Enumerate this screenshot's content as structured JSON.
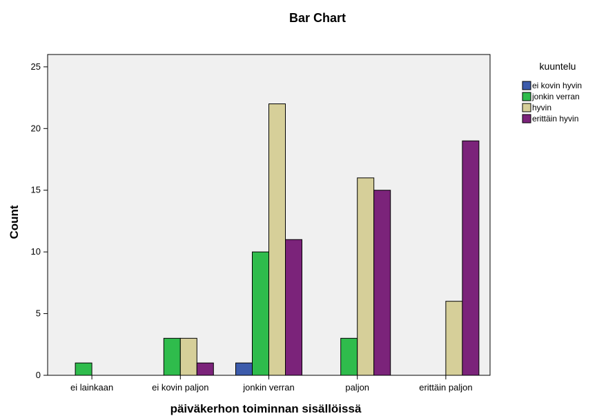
{
  "chart_data": {
    "type": "bar",
    "title": "Bar Chart",
    "xlabel": "päiväkerhon toiminnan sisällöissä",
    "ylabel": "Count",
    "ylim": [
      0,
      26
    ],
    "yticks": [
      0,
      5,
      10,
      15,
      20,
      25
    ],
    "grid": false,
    "legend_position": "top-right",
    "legend_title": "kuuntelu",
    "categories": [
      "ei lainkaan",
      "ei kovin paljon",
      "jonkin verran",
      "paljon",
      "erittäin paljon"
    ],
    "series": [
      {
        "name": "ei kovin hyvin",
        "color": "#3c5bab",
        "values": [
          0,
          0,
          1,
          0,
          0
        ]
      },
      {
        "name": "jonkin verran",
        "color": "#2fbc4c",
        "values": [
          1,
          3,
          10,
          3,
          0
        ]
      },
      {
        "name": "hyvin",
        "color": "#d6cf99",
        "values": [
          0,
          3,
          22,
          16,
          6
        ]
      },
      {
        "name": "erittäin hyvin",
        "color": "#7b237a",
        "values": [
          0,
          1,
          11,
          15,
          19
        ]
      }
    ],
    "plot_background": "#f0f0f0"
  }
}
